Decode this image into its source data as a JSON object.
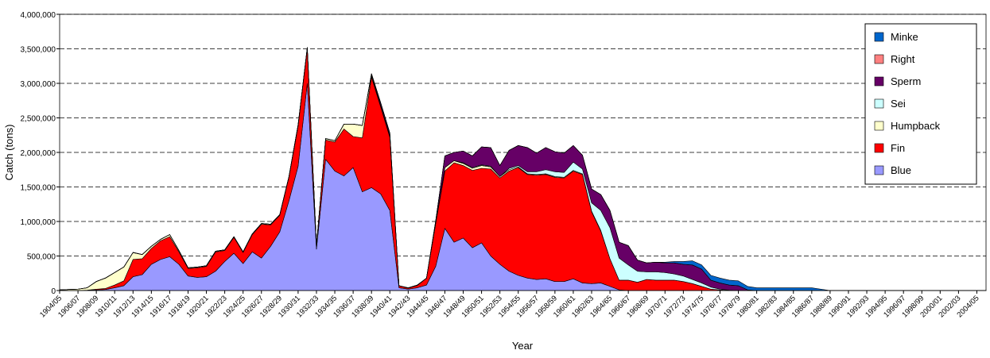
{
  "chart_data": {
    "type": "stacked_area",
    "y_label": "Catch (tons)",
    "x_label": "Year",
    "categories": [
      "1904/05",
      null,
      "1906/07",
      null,
      "1908/09",
      null,
      "1910/11",
      null,
      "1912/13",
      null,
      "1914/15",
      null,
      "1916/17",
      null,
      "1918/19",
      null,
      "1920/21",
      null,
      "1922/23",
      null,
      "1924/25",
      null,
      "1926/27",
      null,
      "1928/29",
      null,
      "1930/31",
      null,
      "1932/33",
      null,
      "1934/35",
      null,
      "1936/37",
      null,
      "1938/39",
      null,
      "1940/41",
      null,
      "1942/43",
      null,
      "1944/45",
      null,
      "1946/47",
      null,
      "1948/49",
      null,
      "1950/51",
      null,
      "1952/53",
      null,
      "1954/55",
      null,
      "1956/57",
      null,
      "1958/59",
      null,
      "1960/61",
      null,
      "1962/63",
      null,
      "1964/65",
      null,
      "1966/67",
      null,
      "1968/69",
      null,
      "1970/71",
      null,
      "1972/73",
      null,
      "1974/75",
      null,
      "1976/77",
      null,
      "1978/79",
      null,
      "1980/81",
      null,
      "1982/83",
      null,
      "1984/85",
      null,
      "1986/87",
      null,
      "1988/89",
      null,
      "1990/91",
      null,
      "1992/93",
      null,
      "1994/95",
      null,
      "1996/97",
      null,
      "1998/99",
      null,
      "2000/01",
      null,
      "2002/03",
      null,
      "2004/05",
      null
    ],
    "series": [
      {
        "name": "Blue",
        "color": "#9999ff",
        "values": [
          0,
          0,
          0,
          5000,
          10000,
          15000,
          40000,
          70000,
          200000,
          230000,
          380000,
          450000,
          490000,
          380000,
          210000,
          190000,
          200000,
          280000,
          420000,
          540000,
          390000,
          560000,
          470000,
          640000,
          850000,
          1300000,
          1800000,
          3000000,
          600000,
          1900000,
          1730000,
          1660000,
          1780000,
          1430000,
          1490000,
          1400000,
          1160000,
          40000,
          20000,
          40000,
          80000,
          350000,
          900000,
          700000,
          760000,
          620000,
          690000,
          500000,
          380000,
          280000,
          220000,
          180000,
          160000,
          170000,
          130000,
          130000,
          170000,
          110000,
          100000,
          110000,
          60000,
          10000,
          0,
          0,
          0,
          0,
          0,
          0,
          0,
          0,
          0,
          0,
          0,
          0,
          0,
          0,
          0,
          0,
          0,
          0,
          0,
          0,
          0,
          0,
          0,
          0,
          0,
          0,
          0,
          0,
          0,
          0,
          0,
          0,
          0,
          0,
          0,
          0,
          0,
          0,
          0,
          0
        ]
      },
      {
        "name": "Fin",
        "color": "#ff0000",
        "values": [
          0,
          0,
          0,
          0,
          10000,
          15000,
          40000,
          70000,
          250000,
          230000,
          230000,
          270000,
          290000,
          180000,
          110000,
          140000,
          150000,
          280000,
          160000,
          230000,
          160000,
          250000,
          490000,
          310000,
          240000,
          340000,
          580000,
          500000,
          40000,
          280000,
          420000,
          680000,
          450000,
          780000,
          1600000,
          1260000,
          1060000,
          30000,
          15000,
          35000,
          100000,
          620000,
          830000,
          1150000,
          1050000,
          1120000,
          1080000,
          1260000,
          1250000,
          1450000,
          1560000,
          1500000,
          1510000,
          1510000,
          1510000,
          1500000,
          1560000,
          1570000,
          1040000,
          750000,
          400000,
          140000,
          150000,
          120000,
          160000,
          150000,
          150000,
          150000,
          130000,
          100000,
          60000,
          20000,
          10000,
          0,
          0,
          0,
          0,
          0,
          0,
          0,
          0,
          0,
          0,
          0,
          0,
          0,
          0,
          0,
          0,
          0,
          0,
          0,
          0,
          0,
          0,
          0,
          0,
          0,
          0,
          0,
          0,
          0
        ]
      },
      {
        "name": "Humpback",
        "color": "#ffffcc",
        "values": [
          10000,
          15000,
          20000,
          35000,
          110000,
          150000,
          180000,
          200000,
          100000,
          60000,
          30000,
          20000,
          30000,
          20000,
          10000,
          10000,
          10000,
          10000,
          10000,
          10000,
          10000,
          10000,
          10000,
          10000,
          10000,
          10000,
          20000,
          20000,
          10000,
          20000,
          20000,
          70000,
          180000,
          180000,
          30000,
          20000,
          20000,
          0,
          0,
          0,
          0,
          10000,
          50000,
          30000,
          30000,
          30000,
          40000,
          30000,
          20000,
          20000,
          10000,
          10000,
          10000,
          10000,
          10000,
          10000,
          10000,
          10000,
          10000,
          10000,
          0,
          0,
          0,
          0,
          0,
          0,
          0,
          0,
          0,
          0,
          0,
          0,
          0,
          0,
          0,
          0,
          0,
          0,
          0,
          0,
          0,
          0,
          0,
          0,
          0,
          0,
          0,
          0,
          0,
          0,
          0,
          0,
          0,
          0,
          0,
          0,
          0,
          0,
          0,
          0,
          0,
          0
        ]
      },
      {
        "name": "Sei",
        "color": "#ccffff",
        "values": [
          0,
          0,
          0,
          0,
          0,
          0,
          0,
          0,
          0,
          0,
          0,
          0,
          0,
          0,
          0,
          0,
          0,
          0,
          0,
          0,
          0,
          0,
          0,
          0,
          0,
          0,
          0,
          0,
          0,
          0,
          0,
          0,
          0,
          0,
          0,
          0,
          0,
          0,
          0,
          0,
          0,
          0,
          0,
          0,
          10000,
          10000,
          10000,
          10000,
          0,
          20000,
          20000,
          30000,
          40000,
          60000,
          70000,
          70000,
          120000,
          70000,
          120000,
          290000,
          450000,
          320000,
          220000,
          160000,
          110000,
          120000,
          110000,
          90000,
          80000,
          60000,
          50000,
          30000,
          10000,
          5000,
          0,
          0,
          0,
          0,
          0,
          0,
          0,
          0,
          0,
          0,
          0,
          0,
          0,
          0,
          0,
          0,
          0,
          0,
          0,
          0,
          0,
          0,
          0,
          0,
          0,
          0,
          0,
          0
        ]
      },
      {
        "name": "Sperm",
        "color": "#660066",
        "values": [
          0,
          0,
          0,
          0,
          0,
          0,
          0,
          0,
          0,
          0,
          0,
          0,
          0,
          0,
          0,
          0,
          0,
          0,
          0,
          0,
          0,
          0,
          0,
          0,
          0,
          0,
          0,
          0,
          0,
          0,
          0,
          0,
          0,
          0,
          20000,
          40000,
          40000,
          0,
          5000,
          5000,
          0,
          30000,
          170000,
          120000,
          170000,
          170000,
          260000,
          270000,
          160000,
          260000,
          290000,
          350000,
          270000,
          320000,
          290000,
          280000,
          240000,
          200000,
          200000,
          230000,
          250000,
          230000,
          280000,
          160000,
          130000,
          140000,
          140000,
          160000,
          170000,
          210000,
          200000,
          100000,
          90000,
          75000,
          70000,
          10000,
          0,
          0,
          0,
          0,
          0,
          0,
          0,
          0,
          0,
          0,
          0,
          0,
          0,
          0,
          0,
          0,
          0,
          0,
          0,
          0,
          0,
          0,
          0,
          0,
          0,
          0
        ]
      },
      {
        "name": "Right",
        "color": "#ff8080",
        "values": [
          0,
          0,
          0,
          0,
          2000,
          2000,
          2000,
          2000,
          2000,
          2000,
          2000,
          2000,
          0,
          0,
          0,
          0,
          0,
          0,
          0,
          0,
          0,
          0,
          0,
          0,
          0,
          0,
          0,
          0,
          0,
          0,
          0,
          0,
          0,
          0,
          0,
          0,
          0,
          0,
          0,
          0,
          0,
          0,
          0,
          0,
          0,
          0,
          0,
          0,
          0,
          0,
          0,
          0,
          0,
          0,
          0,
          0,
          0,
          0,
          0,
          0,
          0,
          0,
          0,
          0,
          0,
          0,
          0,
          0,
          0,
          0,
          0,
          0,
          0,
          0,
          0,
          0,
          0,
          0,
          0,
          0,
          0,
          0,
          0,
          0,
          0,
          0,
          0,
          0,
          0,
          0,
          0,
          0,
          0,
          0,
          0,
          0,
          0,
          0,
          0,
          0,
          0,
          0
        ]
      },
      {
        "name": "Minke",
        "color": "#0066cc",
        "values": [
          0,
          0,
          0,
          0,
          0,
          0,
          0,
          0,
          0,
          0,
          0,
          0,
          0,
          0,
          0,
          0,
          0,
          0,
          0,
          0,
          0,
          0,
          0,
          0,
          0,
          0,
          0,
          0,
          0,
          0,
          0,
          0,
          0,
          0,
          0,
          0,
          0,
          0,
          0,
          0,
          0,
          0,
          0,
          0,
          0,
          0,
          0,
          0,
          0,
          0,
          0,
          0,
          0,
          0,
          0,
          0,
          0,
          0,
          0,
          0,
          0,
          0,
          0,
          0,
          0,
          0,
          10000,
          20000,
          40000,
          60000,
          60000,
          70000,
          70000,
          70000,
          70000,
          50000,
          40000,
          40000,
          40000,
          40000,
          40000,
          40000,
          40000,
          20000,
          0,
          0,
          0,
          0,
          0,
          0,
          0,
          0,
          0,
          0,
          0,
          0,
          0,
          0,
          0,
          0,
          0,
          0
        ]
      }
    ],
    "ylim": [
      0,
      4000000
    ],
    "yticks": [
      0,
      {
        "value": 500000,
        "label": "500,000"
      },
      {
        "value": 1000000,
        "label": "1,000,000"
      },
      {
        "value": 1500000,
        "label": "1,500,000"
      },
      {
        "value": 2000000,
        "label": "2,000,000"
      },
      {
        "value": 2500000,
        "label": "2,500,000"
      },
      {
        "value": 3000000,
        "label": "3,000,000"
      },
      {
        "value": 3500000,
        "label": "3,500,000"
      },
      {
        "value": 4000000,
        "label": "4,000,000"
      }
    ],
    "grid": true,
    "legend": "upper right"
  }
}
